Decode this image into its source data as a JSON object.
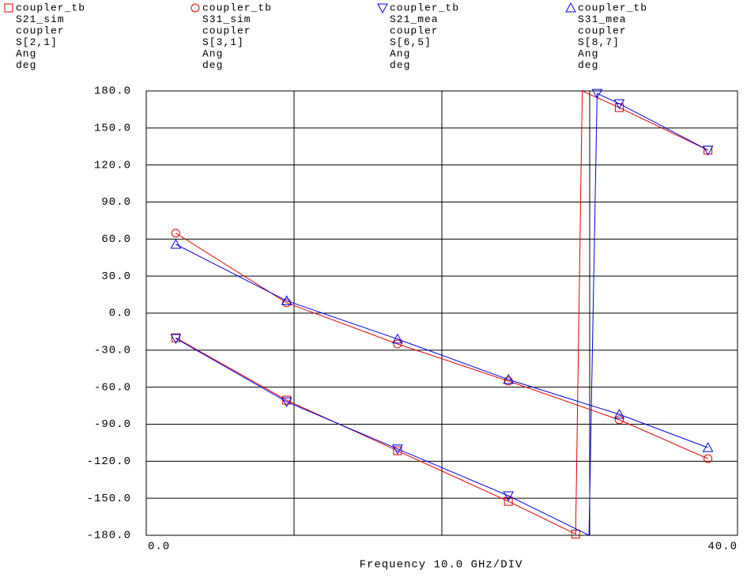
{
  "chart_data": {
    "type": "line",
    "x_label": "Frequency 10.0 GHz/DIV",
    "xlim": [
      0,
      40
    ],
    "xticks": [
      {
        "value": 0,
        "label": "0.0"
      },
      {
        "value": 40,
        "label": "40.0"
      }
    ],
    "xgrid": [
      10,
      20,
      30
    ],
    "ylim": [
      -180,
      180
    ],
    "yticks": [
      {
        "value": 180,
        "label": "180.0"
      },
      {
        "value": 150,
        "label": "150.0"
      },
      {
        "value": 120,
        "label": "120.0"
      },
      {
        "value": 90,
        "label": "90.0"
      },
      {
        "value": 60,
        "label": "60.0"
      },
      {
        "value": 30,
        "label": "30.0"
      },
      {
        "value": 0,
        "label": "0.0"
      },
      {
        "value": -30,
        "label": "-30.0"
      },
      {
        "value": -60,
        "label": "-60.0"
      },
      {
        "value": -90,
        "label": "-90.0"
      },
      {
        "value": -120,
        "label": "-120.0"
      },
      {
        "value": -150,
        "label": "-150.0"
      },
      {
        "value": -180,
        "label": "-180.0"
      }
    ],
    "grid": true,
    "series": [
      {
        "name": "S21_sim",
        "dataset": "coupler_tb",
        "design": "coupler",
        "expr": "S[2,1]",
        "format": "Ang",
        "unit": "deg",
        "marker": "square",
        "color": "#e00000",
        "x": [
          2,
          9.5,
          17,
          24.5,
          29.05,
          29.5,
          32,
          38
        ],
        "values": [
          -20,
          -70.5,
          -111.5,
          -152.5,
          -179,
          180,
          166.5,
          132
        ]
      },
      {
        "name": "S31_sim",
        "dataset": "coupler_tb",
        "design": "coupler",
        "expr": "S[3,1]",
        "format": "Ang",
        "unit": "deg",
        "marker": "circle",
        "color": "#e00000",
        "x": [
          2,
          9.5,
          17,
          24.5,
          32,
          38
        ],
        "values": [
          64.8,
          8.4,
          -25,
          -55,
          -86.4,
          -117.9
        ]
      },
      {
        "name": "S21_mea",
        "dataset": "coupler_tb",
        "design": "coupler",
        "expr": "S[6,5]",
        "format": "Ang",
        "unit": "deg",
        "marker": "triangle-down",
        "color": "#0000e0",
        "x": [
          2,
          9.5,
          17,
          24.5,
          29.95,
          30.5,
          32,
          38
        ],
        "values": [
          -20.5,
          -71.8,
          -110,
          -148,
          -180,
          178,
          169.7,
          132
        ]
      },
      {
        "name": "S31_mea",
        "dataset": "coupler_tb",
        "design": "coupler",
        "expr": "S[8,7]",
        "format": "Ang",
        "unit": "deg",
        "marker": "triangle-up",
        "color": "#0000e0",
        "x": [
          2,
          9.5,
          17,
          24.5,
          32,
          38
        ],
        "values": [
          55.7,
          10,
          -21,
          -53.8,
          -82,
          -109
        ]
      }
    ]
  }
}
